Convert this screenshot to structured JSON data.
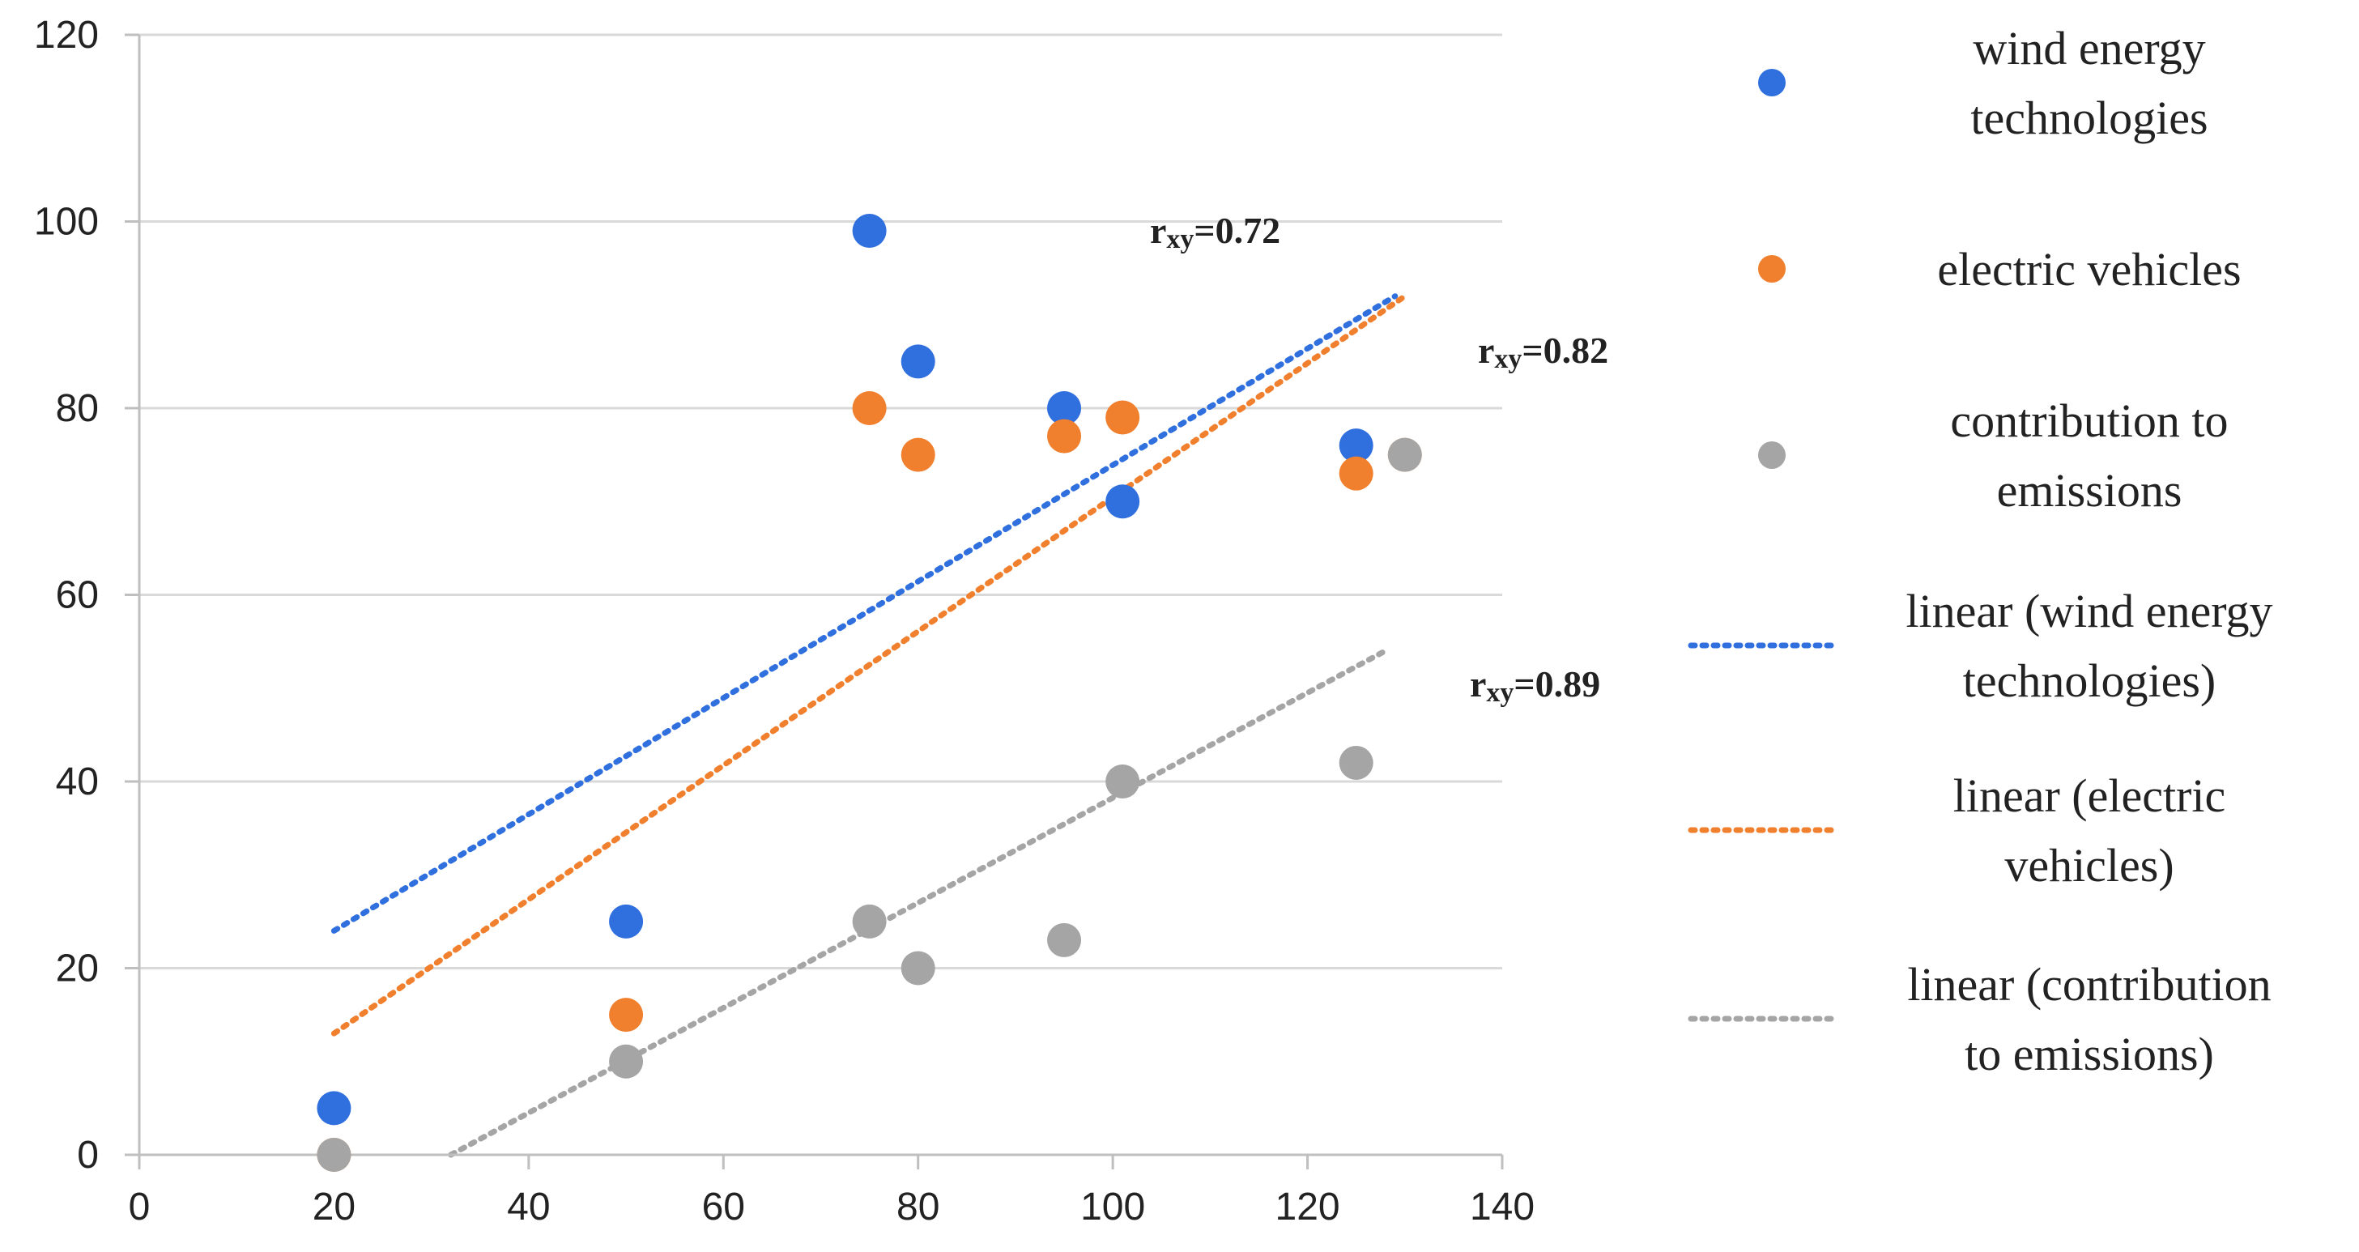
{
  "chart_data": {
    "type": "scatter",
    "title": "",
    "xlabel": "",
    "ylabel": "",
    "xlim": [
      0,
      140
    ],
    "ylim": [
      0,
      120
    ],
    "x_ticks": [
      "0",
      "20",
      "40",
      "60",
      "80",
      "100",
      "120",
      "140"
    ],
    "y_ticks": [
      "0",
      "20",
      "40",
      "60",
      "80",
      "100",
      "120"
    ],
    "grid": "horizontal",
    "legend_position": "right",
    "series": [
      {
        "name": "wind energy technologies",
        "legend_lines": [
          "wind energy",
          "technologies"
        ],
        "color": "#2f6fde",
        "points": [
          [
            20,
            5
          ],
          [
            50,
            25
          ],
          [
            75,
            99
          ],
          [
            80,
            85
          ],
          [
            95,
            80
          ],
          [
            101,
            70
          ],
          [
            125,
            76
          ]
        ],
        "trend": {
          "name": "linear (wind energy technologies)",
          "legend_lines": [
            "linear (wind energy",
            "technologies)"
          ],
          "x": [
            20,
            129
          ],
          "y": [
            24,
            92
          ]
        },
        "r_label": {
          "prefix": "r",
          "sub": "xy",
          "suffix": "=0.72"
        }
      },
      {
        "name": "electric vehicles",
        "legend_lines": [
          "electric vehicles"
        ],
        "color": "#f07f2e",
        "points": [
          [
            20,
            0
          ],
          [
            50,
            15
          ],
          [
            75,
            80
          ],
          [
            80,
            75
          ],
          [
            95,
            77
          ],
          [
            101,
            79
          ],
          [
            125,
            73
          ],
          [
            130,
            75
          ]
        ],
        "trend": {
          "name": "linear (electric vehicles)",
          "legend_lines": [
            "linear (electric",
            "vehicles)"
          ],
          "x": [
            20,
            130
          ],
          "y": [
            13,
            92
          ]
        },
        "r_label": {
          "prefix": "r",
          "sub": "xy",
          "suffix": "=0.82"
        }
      },
      {
        "name": "contribution to emissions",
        "legend_lines": [
          "contribution to",
          "emissions"
        ],
        "color": "#a5a5a5",
        "points": [
          [
            20,
            0
          ],
          [
            50,
            10
          ],
          [
            75,
            25
          ],
          [
            80,
            20
          ],
          [
            95,
            23
          ],
          [
            101,
            40
          ],
          [
            125,
            42
          ],
          [
            130,
            75
          ]
        ],
        "trend": {
          "name": "linear (contribution to emissions)",
          "legend_lines": [
            "linear (contribution",
            "to emissions)"
          ],
          "x": [
            32,
            128
          ],
          "y": [
            0,
            54
          ]
        },
        "r_label": {
          "prefix": "r",
          "sub": "xy",
          "suffix": "=0.89"
        }
      }
    ]
  }
}
